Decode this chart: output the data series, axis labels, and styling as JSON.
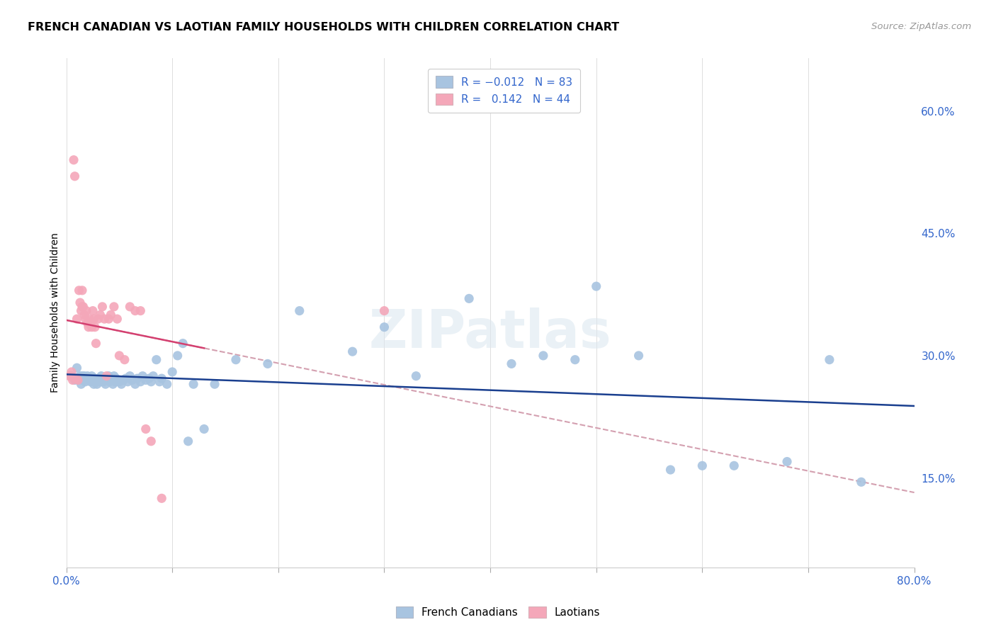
{
  "title": "FRENCH CANADIAN VS LAOTIAN FAMILY HOUSEHOLDS WITH CHILDREN CORRELATION CHART",
  "source": "Source: ZipAtlas.com",
  "ylabel": "Family Households with Children",
  "legend_blue_label": "French Canadians",
  "legend_pink_label": "Laotians",
  "blue_color": "#a8c4e0",
  "pink_color": "#f4a7b9",
  "trend_blue_color": "#1a3f8f",
  "trend_pink_color": "#d44070",
  "trend_dashed_color": "#d4a0b0",
  "xlim": [
    0.0,
    0.8
  ],
  "ylim": [
    0.04,
    0.665
  ],
  "ytick_values": [
    0.15,
    0.3,
    0.45,
    0.6
  ],
  "ytick_labels": [
    "15.0%",
    "30.0%",
    "45.0%",
    "60.0%"
  ],
  "blue_slope": -0.012,
  "blue_intercept": 0.272,
  "pink_slope": 0.55,
  "pink_intercept": 0.268,
  "blue_points_x": [
    0.005,
    0.008,
    0.01,
    0.012,
    0.013,
    0.014,
    0.015,
    0.016,
    0.017,
    0.018,
    0.019,
    0.02,
    0.021,
    0.022,
    0.023,
    0.024,
    0.025,
    0.026,
    0.027,
    0.028,
    0.029,
    0.03,
    0.031,
    0.032,
    0.033,
    0.034,
    0.035,
    0.036,
    0.037,
    0.038,
    0.04,
    0.041,
    0.042,
    0.043,
    0.044,
    0.045,
    0.046,
    0.047,
    0.048,
    0.05,
    0.052,
    0.054,
    0.056,
    0.058,
    0.06,
    0.062,
    0.065,
    0.067,
    0.07,
    0.072,
    0.075,
    0.078,
    0.08,
    0.082,
    0.085,
    0.088,
    0.09,
    0.095,
    0.1,
    0.105,
    0.11,
    0.115,
    0.12,
    0.13,
    0.14,
    0.16,
    0.19,
    0.22,
    0.27,
    0.3,
    0.33,
    0.38,
    0.42,
    0.45,
    0.48,
    0.5,
    0.54,
    0.57,
    0.6,
    0.63,
    0.68,
    0.72,
    0.75
  ],
  "blue_points_y": [
    0.275,
    0.27,
    0.285,
    0.27,
    0.275,
    0.265,
    0.275,
    0.27,
    0.275,
    0.268,
    0.27,
    0.275,
    0.27,
    0.272,
    0.268,
    0.275,
    0.27,
    0.265,
    0.272,
    0.268,
    0.265,
    0.27,
    0.272,
    0.268,
    0.275,
    0.27,
    0.268,
    0.272,
    0.265,
    0.27,
    0.275,
    0.268,
    0.272,
    0.27,
    0.265,
    0.275,
    0.268,
    0.272,
    0.27,
    0.268,
    0.265,
    0.27,
    0.272,
    0.268,
    0.275,
    0.27,
    0.265,
    0.272,
    0.268,
    0.275,
    0.27,
    0.272,
    0.268,
    0.275,
    0.295,
    0.268,
    0.272,
    0.265,
    0.28,
    0.3,
    0.315,
    0.195,
    0.265,
    0.21,
    0.265,
    0.295,
    0.29,
    0.355,
    0.305,
    0.335,
    0.275,
    0.37,
    0.29,
    0.3,
    0.295,
    0.385,
    0.3,
    0.16,
    0.165,
    0.165,
    0.17,
    0.295,
    0.145
  ],
  "pink_points_x": [
    0.003,
    0.005,
    0.006,
    0.007,
    0.008,
    0.009,
    0.01,
    0.011,
    0.012,
    0.013,
    0.014,
    0.015,
    0.015,
    0.016,
    0.017,
    0.018,
    0.019,
    0.02,
    0.021,
    0.022,
    0.023,
    0.024,
    0.025,
    0.026,
    0.027,
    0.028,
    0.03,
    0.032,
    0.034,
    0.036,
    0.038,
    0.04,
    0.042,
    0.045,
    0.048,
    0.05,
    0.055,
    0.06,
    0.065,
    0.07,
    0.075,
    0.08,
    0.09,
    0.3
  ],
  "pink_points_y": [
    0.275,
    0.28,
    0.27,
    0.54,
    0.52,
    0.272,
    0.345,
    0.27,
    0.38,
    0.365,
    0.355,
    0.38,
    0.36,
    0.36,
    0.35,
    0.345,
    0.355,
    0.34,
    0.335,
    0.345,
    0.34,
    0.335,
    0.355,
    0.345,
    0.335,
    0.315,
    0.345,
    0.35,
    0.36,
    0.345,
    0.275,
    0.345,
    0.35,
    0.36,
    0.345,
    0.3,
    0.295,
    0.36,
    0.355,
    0.355,
    0.21,
    0.195,
    0.125,
    0.355
  ]
}
